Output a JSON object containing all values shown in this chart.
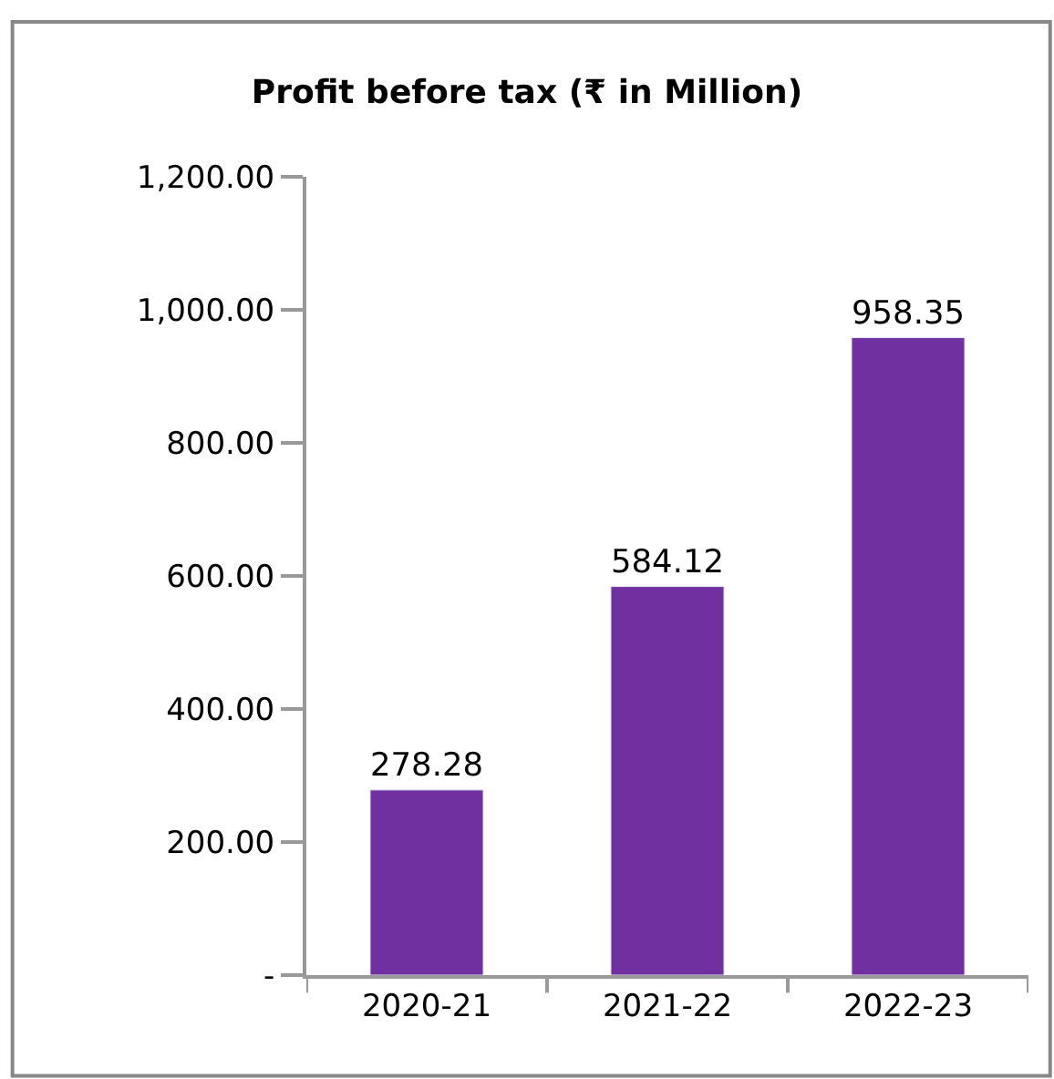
{
  "chart_data": {
    "type": "bar",
    "title": "Profit before tax (₹ in Million)",
    "categories": [
      "2020-21",
      "2021-22",
      "2022-23"
    ],
    "values": [
      278.28,
      584.12,
      958.35
    ],
    "color": "#7030a0",
    "ylim": [
      0,
      1200
    ],
    "yticks": [
      {
        "value": 0,
        "label": "-"
      },
      {
        "value": 200,
        "label": "200.00"
      },
      {
        "value": 400,
        "label": "400.00"
      },
      {
        "value": 600,
        "label": "600.00"
      },
      {
        "value": 800,
        "label": "800.00"
      },
      {
        "value": 1000,
        "label": "1,000.00"
      },
      {
        "value": 1200,
        "label": "1,200.00"
      }
    ],
    "data_labels": true,
    "legend": false
  }
}
